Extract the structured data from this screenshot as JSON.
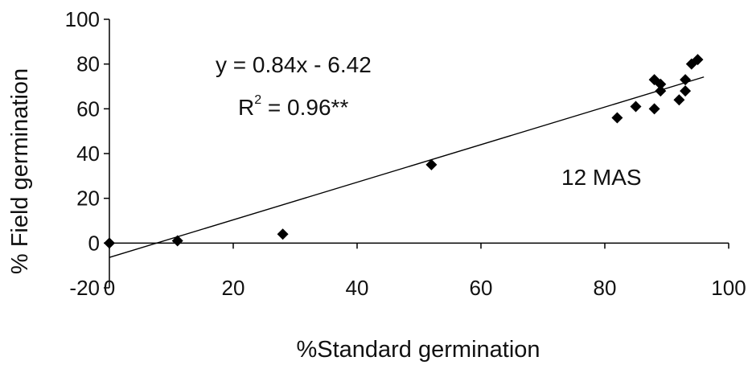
{
  "chart_data": {
    "type": "scatter",
    "title": "",
    "xlabel": "%Standard germination",
    "ylabel": "% Field germination",
    "xlim": [
      0,
      100
    ],
    "ylim": [
      -20,
      100
    ],
    "xticks": [
      0,
      20,
      40,
      60,
      80,
      100
    ],
    "yticks": [
      -20,
      0,
      20,
      40,
      60,
      80,
      100
    ],
    "x_tick_labels": [
      "0",
      "20",
      "40",
      "60",
      "80",
      "100"
    ],
    "y_tick_labels": [
      "-20",
      "0",
      "20",
      "40",
      "60",
      "80",
      "100"
    ],
    "grid": false,
    "legend": "none",
    "series": [
      {
        "marker": "diamond",
        "color": "#000000",
        "points": [
          {
            "x": 0,
            "y": 0
          },
          {
            "x": 11,
            "y": 1
          },
          {
            "x": 28,
            "y": 4
          },
          {
            "x": 52,
            "y": 35
          },
          {
            "x": 82,
            "y": 56
          },
          {
            "x": 85,
            "y": 61
          },
          {
            "x": 88,
            "y": 60
          },
          {
            "x": 88,
            "y": 73
          },
          {
            "x": 89,
            "y": 71
          },
          {
            "x": 89,
            "y": 68
          },
          {
            "x": 92,
            "y": 64
          },
          {
            "x": 93,
            "y": 73
          },
          {
            "x": 93,
            "y": 68
          },
          {
            "x": 94,
            "y": 80
          },
          {
            "x": 95,
            "y": 82
          }
        ]
      }
    ],
    "trendline": {
      "slope": 0.84,
      "intercept": -6.42,
      "x_range": [
        0,
        96
      ],
      "color": "#000000"
    },
    "annotations": {
      "equation": "y = 0.84x - 6.42",
      "r2_prefix": "R",
      "r2_superscript": "2",
      "r2_value": " = 0.96**",
      "stage_label": "12 MAS"
    }
  }
}
